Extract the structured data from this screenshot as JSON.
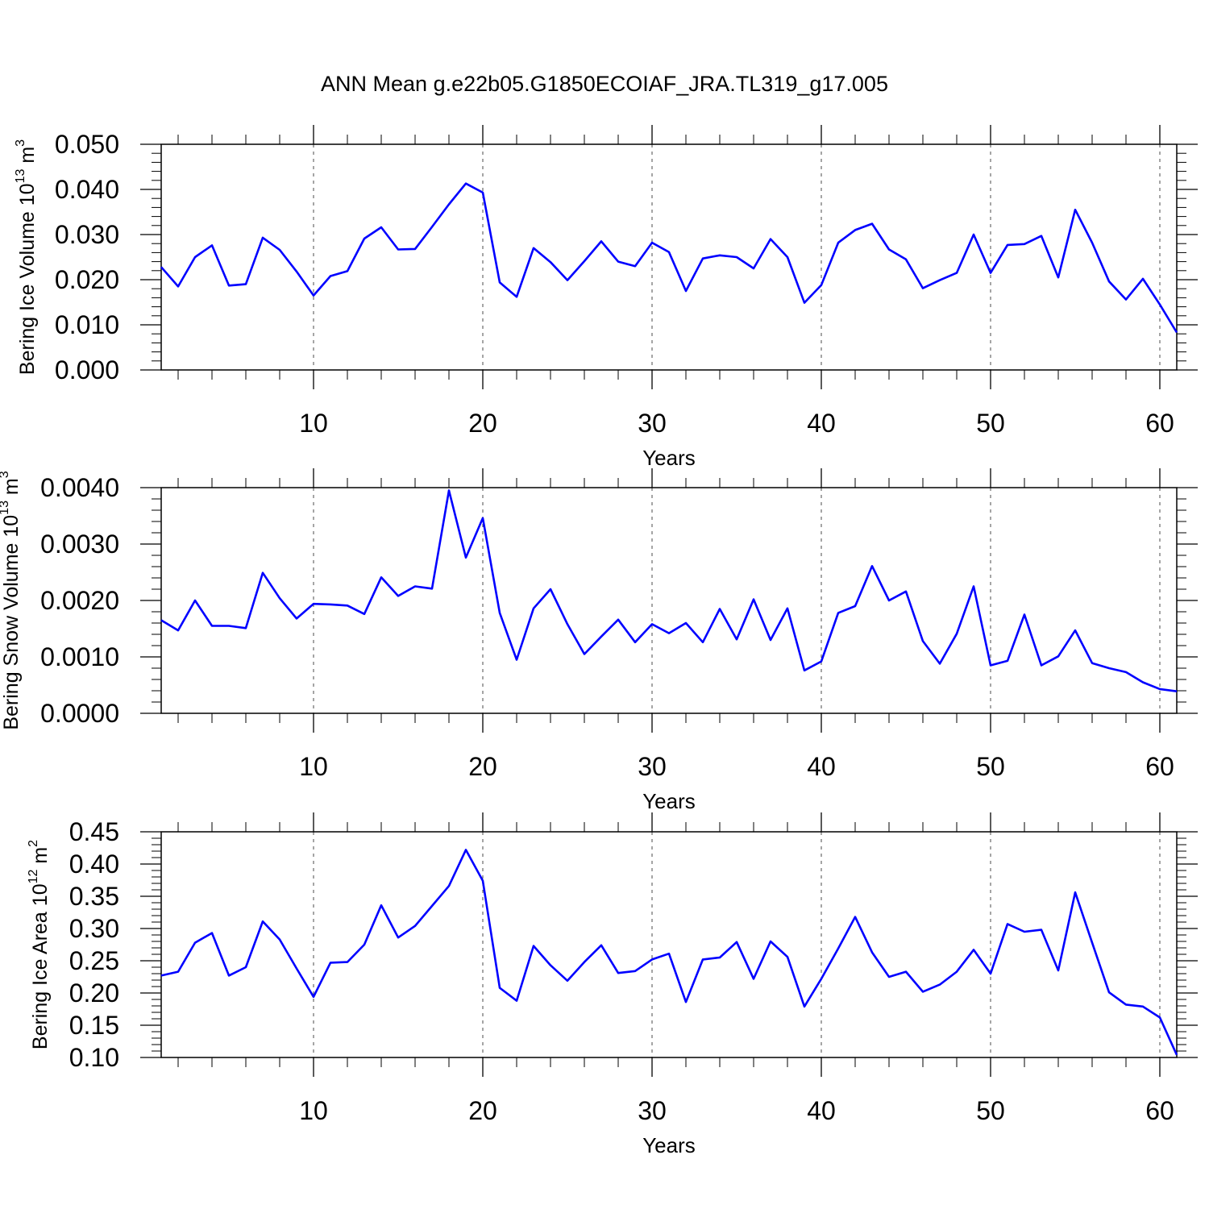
{
  "figure_title": "ANN Mean g.e22b05.G1850ECOIAF_JRA.TL319_g17.005",
  "chart_data": [
    {
      "type": "line",
      "ylabel": {
        "base": "Bering Ice Volume 10",
        "exp": "13",
        "unit": " m",
        "unit_exp": "3"
      },
      "xlabel": "Years",
      "xlim": [
        1,
        61
      ],
      "ylim": [
        0,
        0.05
      ],
      "yticks": [
        "0.000",
        "0.010",
        "0.020",
        "0.030",
        "0.040",
        "0.050"
      ],
      "yminor_step": 0.002,
      "xticks": [
        "10",
        "20",
        "30",
        "40",
        "50",
        "60"
      ],
      "grid": "vertical dashed at major x ticks",
      "line_color": "#0000ff",
      "x": [
        1,
        2,
        3,
        4,
        5,
        6,
        7,
        8,
        9,
        10,
        11,
        12,
        13,
        14,
        15,
        16,
        17,
        18,
        19,
        20,
        21,
        22,
        23,
        24,
        25,
        26,
        27,
        28,
        29,
        30,
        31,
        32,
        33,
        34,
        35,
        36,
        37,
        38,
        39,
        40,
        41,
        42,
        43,
        44,
        45,
        46,
        47,
        48,
        49,
        50,
        51,
        52,
        53,
        54,
        55,
        56,
        57,
        58,
        59,
        60,
        61
      ],
      "values": [
        0.0228,
        0.0185,
        0.025,
        0.0276,
        0.0187,
        0.019,
        0.0293,
        0.0266,
        0.0218,
        0.0165,
        0.0208,
        0.0219,
        0.0291,
        0.0316,
        0.0267,
        0.0268,
        0.0317,
        0.0367,
        0.0413,
        0.0393,
        0.0194,
        0.0162,
        0.027,
        0.0239,
        0.0199,
        0.0241,
        0.0285,
        0.024,
        0.023,
        0.0282,
        0.0261,
        0.0175,
        0.0247,
        0.0254,
        0.025,
        0.0225,
        0.029,
        0.025,
        0.0149,
        0.0188,
        0.0282,
        0.031,
        0.0324,
        0.0267,
        0.0245,
        0.0181,
        0.0199,
        0.0215,
        0.03,
        0.0215,
        0.0277,
        0.0279,
        0.0297,
        0.0205,
        0.0355,
        0.0282,
        0.0196,
        0.0156,
        0.0202,
        0.0145,
        0.0083
      ]
    },
    {
      "type": "line",
      "ylabel": {
        "base": "Bering Snow Volume 10",
        "exp": "13",
        "unit": " m",
        "unit_exp": "3"
      },
      "xlabel": "Years",
      "xlim": [
        1,
        61
      ],
      "ylim": [
        0,
        0.004
      ],
      "yticks": [
        "0.0000",
        "0.0010",
        "0.0020",
        "0.0030",
        "0.0040"
      ],
      "yminor_step": 0.0002,
      "xticks": [
        "10",
        "20",
        "30",
        "40",
        "50",
        "60"
      ],
      "grid": "vertical dashed at major x ticks",
      "line_color": "#0000ff",
      "x": [
        1,
        2,
        3,
        4,
        5,
        6,
        7,
        8,
        9,
        10,
        11,
        12,
        13,
        14,
        15,
        16,
        17,
        18,
        19,
        20,
        21,
        22,
        23,
        24,
        25,
        26,
        27,
        28,
        29,
        30,
        31,
        32,
        33,
        34,
        35,
        36,
        37,
        38,
        39,
        40,
        41,
        42,
        43,
        44,
        45,
        46,
        47,
        48,
        49,
        50,
        51,
        52,
        53,
        54,
        55,
        56,
        57,
        58,
        59,
        60,
        61
      ],
      "values": [
        0.00165,
        0.00147,
        0.002,
        0.00155,
        0.00155,
        0.00151,
        0.00249,
        0.00204,
        0.00168,
        0.00194,
        0.00193,
        0.00191,
        0.00176,
        0.00241,
        0.00208,
        0.00225,
        0.00221,
        0.00395,
        0.00276,
        0.00346,
        0.00178,
        0.00095,
        0.00186,
        0.0022,
        0.00158,
        0.00105,
        0.00136,
        0.00166,
        0.00126,
        0.00158,
        0.00142,
        0.0016,
        0.00126,
        0.00185,
        0.00131,
        0.00202,
        0.0013,
        0.00186,
        0.00076,
        0.00092,
        0.00178,
        0.0019,
        0.00261,
        0.002,
        0.00216,
        0.00128,
        0.00088,
        0.00141,
        0.00225,
        0.00085,
        0.00093,
        0.00175,
        0.00085,
        0.00101,
        0.00147,
        0.00089,
        0.0008,
        0.00073,
        0.00055,
        0.00043,
        0.00039
      ]
    },
    {
      "type": "line",
      "ylabel": {
        "base": "Bering Ice Area 10",
        "exp": "12",
        "unit": " m",
        "unit_exp": "2"
      },
      "xlabel": "Years",
      "xlim": [
        1,
        61
      ],
      "ylim": [
        0.1,
        0.45
      ],
      "yticks": [
        "0.10",
        "0.15",
        "0.20",
        "0.25",
        "0.30",
        "0.35",
        "0.40",
        "0.45"
      ],
      "yminor_step": 0.01,
      "xticks": [
        "10",
        "20",
        "30",
        "40",
        "50",
        "60"
      ],
      "grid": "vertical dashed at major x ticks",
      "line_color": "#0000ff",
      "x": [
        1,
        2,
        3,
        4,
        5,
        6,
        7,
        8,
        9,
        10,
        11,
        12,
        13,
        14,
        15,
        16,
        17,
        18,
        19,
        20,
        21,
        22,
        23,
        24,
        25,
        26,
        27,
        28,
        29,
        30,
        31,
        32,
        33,
        34,
        35,
        36,
        37,
        38,
        39,
        40,
        41,
        42,
        43,
        44,
        45,
        46,
        47,
        48,
        49,
        50,
        51,
        52,
        53,
        54,
        55,
        56,
        57,
        58,
        59,
        60,
        61
      ],
      "values": [
        0.227,
        0.233,
        0.278,
        0.293,
        0.227,
        0.24,
        0.311,
        0.283,
        0.238,
        0.194,
        0.247,
        0.248,
        0.275,
        0.336,
        0.286,
        0.304,
        0.335,
        0.366,
        0.422,
        0.374,
        0.208,
        0.188,
        0.273,
        0.243,
        0.219,
        0.248,
        0.274,
        0.231,
        0.234,
        0.252,
        0.261,
        0.186,
        0.252,
        0.255,
        0.279,
        0.222,
        0.28,
        0.256,
        0.179,
        0.222,
        0.269,
        0.318,
        0.263,
        0.225,
        0.233,
        0.202,
        0.213,
        0.233,
        0.267,
        0.23,
        0.307,
        0.295,
        0.298,
        0.235,
        0.356,
        0.278,
        0.201,
        0.182,
        0.179,
        0.162,
        0.104
      ]
    }
  ]
}
